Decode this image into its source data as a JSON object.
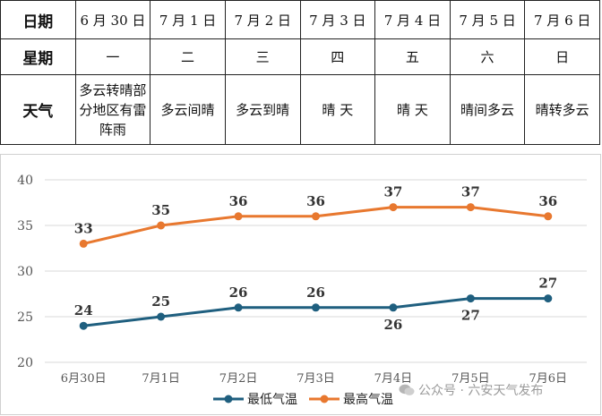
{
  "table": {
    "row_date_header": "日期",
    "row_week_header": "星期",
    "row_weather_header": "天气",
    "days": [
      {
        "date": "6 月 30 日",
        "weekday": "一",
        "weather": "多云转晴部分地区有雷阵雨"
      },
      {
        "date": "7 月 1 日",
        "weekday": "二",
        "weather": "多云间晴"
      },
      {
        "date": "7 月 2 日",
        "weekday": "三",
        "weather": "多云到晴"
      },
      {
        "date": "7 月 3 日",
        "weekday": "四",
        "weather": "晴 天"
      },
      {
        "date": "7 月 4 日",
        "weekday": "五",
        "weather": "晴 天"
      },
      {
        "date": "7 月 5 日",
        "weekday": "六",
        "weather": "晴间多云"
      },
      {
        "date": "7 月 6 日",
        "weekday": "日",
        "weather": "晴转多云"
      }
    ]
  },
  "chart_data": {
    "type": "line",
    "categories": [
      "6月30日",
      "7月1日",
      "7月2日",
      "7月3日",
      "7月4日",
      "7月5日",
      "7月6日"
    ],
    "series": [
      {
        "name": "最低气温",
        "values": [
          24,
          25,
          26,
          26,
          26,
          27,
          27
        ],
        "color": "#1f5f7f"
      },
      {
        "name": "最高气温",
        "values": [
          33,
          35,
          36,
          36,
          37,
          37,
          36
        ],
        "color": "#e8782f"
      }
    ],
    "ylim": [
      20,
      40
    ],
    "yticks": [
      20,
      25,
      30,
      35,
      40
    ],
    "grid": "horizontal",
    "legend": "bottom",
    "low_label_position": [
      "above",
      "above",
      "above",
      "above",
      "below",
      "below",
      "above"
    ]
  },
  "watermark": "公众号 · 六安天气发布"
}
